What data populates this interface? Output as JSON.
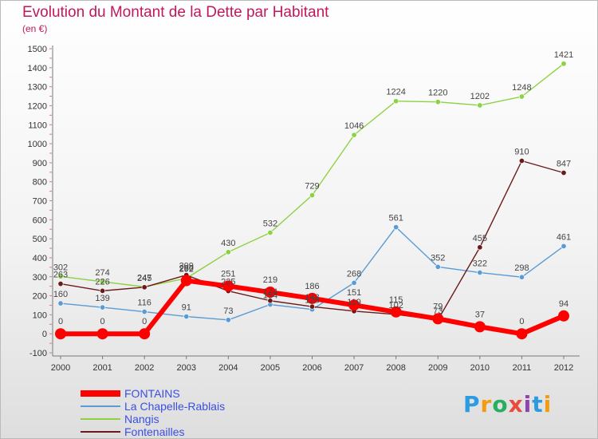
{
  "title": "Evolution du Montant de la Dette par Habitant",
  "unit": "(en €)",
  "logo": [
    "P",
    "r",
    "o",
    "x",
    "i",
    "t",
    "i"
  ],
  "logo_colors": [
    "#2d9be0",
    "#f39c12",
    "#27ae60",
    "#e74c3c",
    "#8e44ad",
    "#2d9be0",
    "#f39c12"
  ],
  "chart_data": {
    "type": "line",
    "title": "Evolution du Montant de la Dette par Habitant",
    "ylabel": "(en €)",
    "xlabel": "",
    "x": [
      "2000",
      "2001",
      "2002",
      "2003",
      "2004",
      "2005",
      "2006",
      "2007",
      "2008",
      "2009",
      "2010",
      "2011",
      "2012"
    ],
    "ylim": [
      -100,
      1500
    ],
    "yticks": [
      "-100",
      "0",
      "100",
      "200",
      "300",
      "400",
      "500",
      "600",
      "700",
      "800",
      "900",
      "1000",
      "1100",
      "1200",
      "1300",
      "1400",
      "1500"
    ],
    "grid": false,
    "legend": "bottom-left",
    "series": [
      {
        "name": "FONTAINS",
        "color": "#ff0000",
        "values": [
          0,
          0,
          0,
          280,
          251,
          219,
          186,
          151,
          115,
          79,
          37,
          0,
          94
        ],
        "labels": [
          "0",
          "0",
          "0",
          "280",
          "251",
          "219",
          "186",
          "151",
          "115",
          "79",
          "37",
          "0",
          "94"
        ]
      },
      {
        "name": "La Chapelle-Rablais",
        "color": "#5b9bd5",
        "values": [
          160,
          139,
          116,
          91,
          73,
          154,
          128,
          268,
          561,
          352,
          322,
          298,
          461
        ],
        "labels": [
          "160",
          "139",
          "116",
          "91",
          "73",
          "154",
          "128",
          "268",
          "561",
          "352",
          "322",
          "298",
          "461"
        ]
      },
      {
        "name": "Nangis",
        "color": "#8cd243",
        "values": [
          302,
          274,
          247,
          292,
          430,
          532,
          729,
          1046,
          1224,
          1220,
          1202,
          1248,
          1421
        ],
        "labels": [
          "302",
          "274",
          "247",
          "292",
          "430",
          "532",
          "729",
          "1046",
          "1224",
          "1220",
          "1202",
          "1248",
          "1421"
        ]
      },
      {
        "name": "Fontenailles",
        "color": "#6b1a1a",
        "values": [
          263,
          226,
          245,
          309,
          225,
          174,
          143,
          119,
          102,
          73,
          455,
          910,
          847
        ],
        "labels": [
          "263",
          "226",
          "245",
          "309",
          "225",
          "174",
          "143",
          "119",
          "102",
          "73",
          "455",
          "910",
          "847"
        ]
      }
    ]
  }
}
